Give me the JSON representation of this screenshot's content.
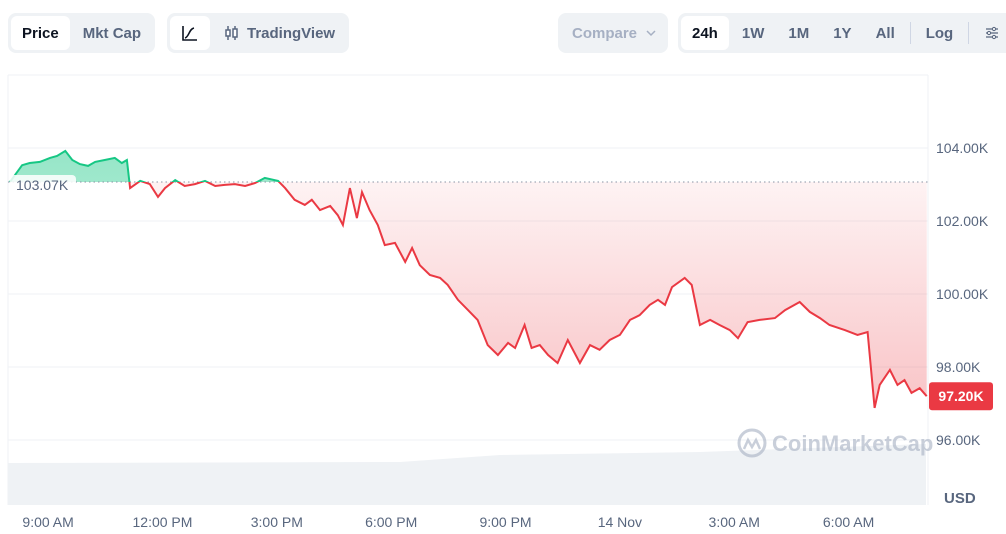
{
  "toolbar": {
    "type_tabs": [
      {
        "label": "Price",
        "active": true
      },
      {
        "label": "Mkt Cap",
        "active": false
      }
    ],
    "chart_style": {
      "line_icon": "line-chart-icon",
      "tradingview_icon": "candlestick-icon",
      "tradingview_label": "TradingView"
    },
    "compare_label": "Compare",
    "ranges": [
      {
        "label": "24h",
        "active": true
      },
      {
        "label": "1W",
        "active": false
      },
      {
        "label": "1M",
        "active": false
      },
      {
        "label": "1Y",
        "active": false
      },
      {
        "label": "All",
        "active": false
      }
    ],
    "log_label": "Log",
    "settings_icon": "sliders-icon"
  },
  "watermark": "CoinMarketCap",
  "colors": {
    "up": "#16c784",
    "down": "#ea3943",
    "grid": "#eff2f5",
    "text": "#58667e"
  },
  "chart_data": {
    "type": "line",
    "currency_label": "USD",
    "baseline": {
      "value": 103.07,
      "label": "103.07K"
    },
    "current": {
      "value": 97.2,
      "label": "97.20K"
    },
    "ylim": [
      95.2,
      105.9
    ],
    "y_ticks": [
      {
        "v": 104,
        "label": "104.00K"
      },
      {
        "v": 102,
        "label": "102.00K"
      },
      {
        "v": 100,
        "label": "100.00K"
      },
      {
        "v": 98,
        "label": "98.00K"
      },
      {
        "v": 96,
        "label": "96.00K"
      }
    ],
    "x_ticks": [
      {
        "t": "13 Nov 09:00",
        "label": "9:00 AM"
      },
      {
        "t": "13 Nov 12:00",
        "label": "12:00 PM"
      },
      {
        "t": "13 Nov 15:00",
        "label": "3:00 PM"
      },
      {
        "t": "13 Nov 18:00",
        "label": "6:00 PM"
      },
      {
        "t": "13 Nov 21:00",
        "label": "9:00 PM"
      },
      {
        "t": "14 Nov 00:00",
        "label": "14 Nov"
      },
      {
        "t": "14 Nov 03:00",
        "label": "3:00 AM"
      },
      {
        "t": "14 Nov 06:00",
        "label": "6:00 AM"
      }
    ],
    "xlim": [
      "13 Nov 08:00",
      "14 Nov 08:05"
    ],
    "y_unit": "K USD",
    "points": [
      [
        "13 Nov 08:00",
        103.07
      ],
      [
        "13 Nov 08:19",
        103.53
      ],
      [
        "13 Nov 08:31",
        103.59
      ],
      [
        "13 Nov 08:47",
        103.62
      ],
      [
        "13 Nov 09:03",
        103.73
      ],
      [
        "13 Nov 09:14",
        103.78
      ],
      [
        "13 Nov 09:27",
        103.92
      ],
      [
        "13 Nov 09:38",
        103.67
      ],
      [
        "13 Nov 09:50",
        103.56
      ],
      [
        "13 Nov 10:03",
        103.51
      ],
      [
        "13 Nov 10:14",
        103.62
      ],
      [
        "13 Nov 10:29",
        103.67
      ],
      [
        "13 Nov 10:45",
        103.73
      ],
      [
        "13 Nov 10:56",
        103.59
      ],
      [
        "13 Nov 11:04",
        103.67
      ],
      [
        "13 Nov 11:09",
        102.9
      ],
      [
        "13 Nov 11:25",
        103.1
      ],
      [
        "13 Nov 11:40",
        103.01
      ],
      [
        "13 Nov 11:53",
        102.66
      ],
      [
        "13 Nov 12:04",
        102.9
      ],
      [
        "13 Nov 12:20",
        103.12
      ],
      [
        "13 Nov 12:35",
        102.96
      ],
      [
        "13 Nov 12:51",
        103.01
      ],
      [
        "13 Nov 13:07",
        103.1
      ],
      [
        "13 Nov 13:23",
        102.96
      ],
      [
        "13 Nov 13:38",
        102.99
      ],
      [
        "13 Nov 13:54",
        103.01
      ],
      [
        "13 Nov 14:10",
        102.96
      ],
      [
        "13 Nov 14:26",
        103.04
      ],
      [
        "13 Nov 14:41",
        103.18
      ],
      [
        "13 Nov 15:02",
        103.1
      ],
      [
        "13 Nov 15:13",
        102.9
      ],
      [
        "13 Nov 15:28",
        102.58
      ],
      [
        "13 Nov 15:44",
        102.44
      ],
      [
        "13 Nov 15:55",
        102.58
      ],
      [
        "13 Nov 16:08",
        102.3
      ],
      [
        "13 Nov 16:24",
        102.41
      ],
      [
        "13 Nov 16:36",
        102.16
      ],
      [
        "13 Nov 16:44",
        101.89
      ],
      [
        "13 Nov 16:55",
        102.9
      ],
      [
        "13 Nov 17:06",
        102.08
      ],
      [
        "13 Nov 17:14",
        102.79
      ],
      [
        "13 Nov 17:26",
        102.3
      ],
      [
        "13 Nov 17:39",
        101.89
      ],
      [
        "13 Nov 17:50",
        101.34
      ],
      [
        "13 Nov 18:06",
        101.4
      ],
      [
        "13 Nov 18:22",
        100.88
      ],
      [
        "13 Nov 18:33",
        101.26
      ],
      [
        "13 Nov 18:45",
        100.79
      ],
      [
        "13 Nov 19:01",
        100.52
      ],
      [
        "13 Nov 19:17",
        100.44
      ],
      [
        "13 Nov 19:29",
        100.25
      ],
      [
        "13 Nov 19:45",
        99.84
      ],
      [
        "13 Nov 20:01",
        99.56
      ],
      [
        "13 Nov 20:16",
        99.29
      ],
      [
        "13 Nov 20:32",
        98.6
      ],
      [
        "13 Nov 20:48",
        98.33
      ],
      [
        "13 Nov 21:04",
        98.66
      ],
      [
        "13 Nov 21:15",
        98.52
      ],
      [
        "13 Nov 21:30",
        99.15
      ],
      [
        "13 Nov 21:41",
        98.52
      ],
      [
        "13 Nov 21:54",
        98.6
      ],
      [
        "13 Nov 22:07",
        98.33
      ],
      [
        "13 Nov 22:22",
        98.11
      ],
      [
        "13 Nov 22:38",
        98.74
      ],
      [
        "13 Nov 22:57",
        98.11
      ],
      [
        "13 Nov 23:13",
        98.6
      ],
      [
        "13 Nov 23:28",
        98.47
      ],
      [
        "13 Nov 23:44",
        98.74
      ],
      [
        "14 Nov 00:00",
        98.88
      ],
      [
        "14 Nov 00:16",
        99.29
      ],
      [
        "14 Nov 00:31",
        99.42
      ],
      [
        "14 Nov 00:47",
        99.7
      ],
      [
        "14 Nov 01:00",
        99.84
      ],
      [
        "14 Nov 01:11",
        99.7
      ],
      [
        "14 Nov 01:22",
        100.19
      ],
      [
        "14 Nov 01:42",
        100.44
      ],
      [
        "14 Nov 01:53",
        100.25
      ],
      [
        "14 Nov 02:06",
        99.15
      ],
      [
        "14 Nov 02:22",
        99.29
      ],
      [
        "14 Nov 02:37",
        99.15
      ],
      [
        "14 Nov 02:53",
        99.01
      ],
      [
        "14 Nov 03:06",
        98.79
      ],
      [
        "14 Nov 03:21",
        99.23
      ],
      [
        "14 Nov 03:40",
        99.29
      ],
      [
        "14 Nov 04:04",
        99.34
      ],
      [
        "14 Nov 04:20",
        99.56
      ],
      [
        "14 Nov 04:43",
        99.78
      ],
      [
        "14 Nov 04:59",
        99.51
      ],
      [
        "14 Nov 05:15",
        99.34
      ],
      [
        "14 Nov 05:30",
        99.15
      ],
      [
        "14 Nov 05:54",
        99.01
      ],
      [
        "14 Nov 06:14",
        98.88
      ],
      [
        "14 Nov 06:30",
        98.96
      ],
      [
        "14 Nov 06:41",
        96.88
      ],
      [
        "14 Nov 06:49",
        97.51
      ],
      [
        "14 Nov 07:05",
        97.92
      ],
      [
        "14 Nov 07:17",
        97.51
      ],
      [
        "14 Nov 07:28",
        97.64
      ],
      [
        "14 Nov 07:39",
        97.29
      ],
      [
        "14 Nov 07:52",
        97.42
      ],
      [
        "14 Nov 08:03",
        97.2
      ]
    ]
  }
}
